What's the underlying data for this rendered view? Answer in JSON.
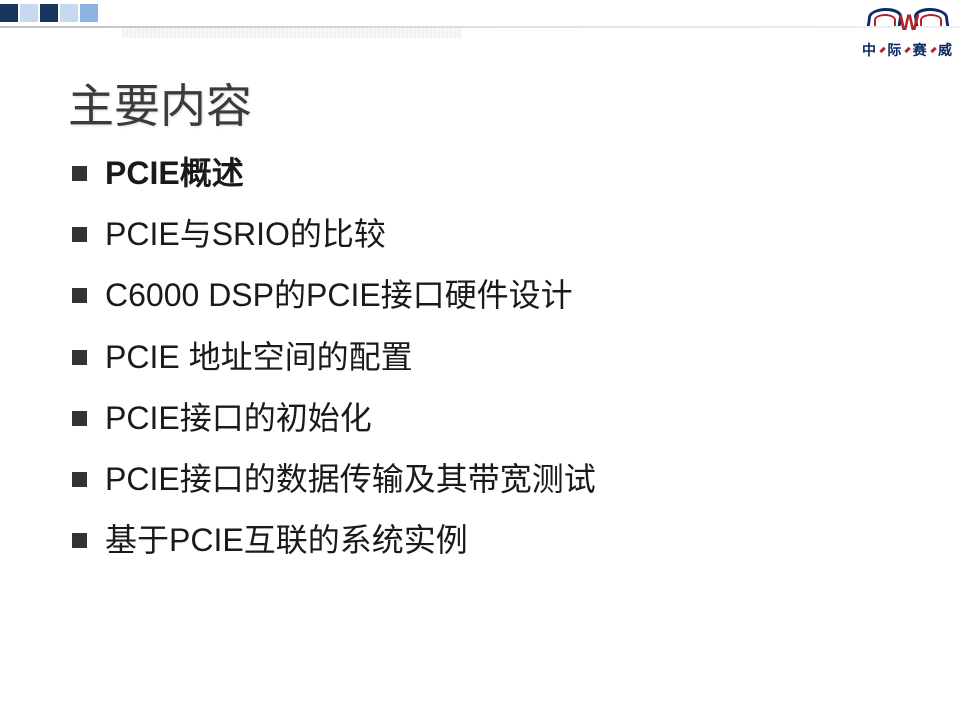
{
  "header": {
    "squares": [
      {
        "color": "#17365d"
      },
      {
        "color": "#c6d9f1"
      },
      {
        "color": "#17365d"
      },
      {
        "color": "#c6d9f1"
      },
      {
        "color": "#8db3e2"
      }
    ]
  },
  "logo": {
    "letter": "W",
    "text_chars": [
      "中",
      "际",
      "赛",
      "威"
    ],
    "primary_color": "#0a2a66",
    "accent_color": "#b2222a"
  },
  "title": "主要内容",
  "bullets": [
    {
      "text": "PCIE概述",
      "bold": true
    },
    {
      "text": "PCIE与SRIO的比较",
      "bold": false
    },
    {
      "text": "C6000 DSP的PCIE接口硬件设计",
      "bold": false
    },
    {
      "text": "PCIE 地址空间的配置",
      "bold": false
    },
    {
      "text": "PCIE接口的初始化",
      "bold": false
    },
    {
      "text": "PCIE接口的数据传输及其带宽测试",
      "bold": false
    },
    {
      "text": "基于PCIE互联的系统实例",
      "bold": false
    }
  ],
  "styles": {
    "title_color": "#3b3b3b",
    "title_fontsize": 46,
    "bullet_fontsize": 32,
    "bullet_color": "#1a1a1a",
    "bullet_marker_color": "#333333",
    "background_color": "#ffffff"
  }
}
